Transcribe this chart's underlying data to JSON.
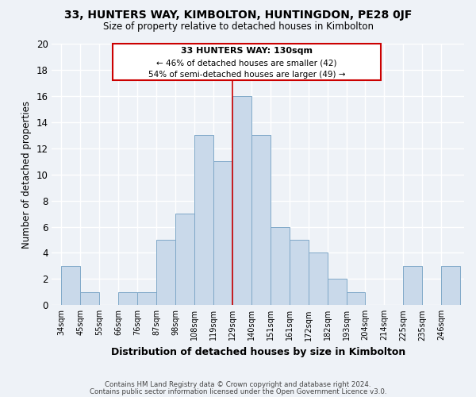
{
  "title": "33, HUNTERS WAY, KIMBOLTON, HUNTINGDON, PE28 0JF",
  "subtitle": "Size of property relative to detached houses in Kimbolton",
  "xlabel": "Distribution of detached houses by size in Kimbolton",
  "ylabel": "Number of detached properties",
  "bin_labels": [
    "34sqm",
    "45sqm",
    "55sqm",
    "66sqm",
    "76sqm",
    "87sqm",
    "98sqm",
    "108sqm",
    "119sqm",
    "129sqm",
    "140sqm",
    "151sqm",
    "161sqm",
    "172sqm",
    "182sqm",
    "193sqm",
    "204sqm",
    "214sqm",
    "225sqm",
    "235sqm",
    "246sqm"
  ],
  "bin_edges": [
    0,
    1,
    2,
    3,
    4,
    5,
    6,
    7,
    8,
    9,
    10,
    11,
    12,
    13,
    14,
    15,
    16,
    17,
    18,
    19,
    20
  ],
  "counts": [
    3,
    1,
    0,
    1,
    1,
    5,
    7,
    13,
    11,
    16,
    13,
    6,
    5,
    4,
    2,
    1,
    0,
    0,
    3,
    0,
    3
  ],
  "highlight_bin": 9,
  "bar_color": "#c9d9ea",
  "bar_edge_color": "#7fa8c8",
  "highlight_line_color": "#cc0000",
  "annotation_title": "33 HUNTERS WAY: 130sqm",
  "annotation_line1": "← 46% of detached houses are smaller (42)",
  "annotation_line2": "54% of semi-detached houses are larger (49) →",
  "annotation_box_color": "#ffffff",
  "annotation_box_edge": "#cc0000",
  "footer1": "Contains HM Land Registry data © Crown copyright and database right 2024.",
  "footer2": "Contains public sector information licensed under the Open Government Licence v3.0.",
  "ylim": [
    0,
    20
  ],
  "background_color": "#eef2f7"
}
